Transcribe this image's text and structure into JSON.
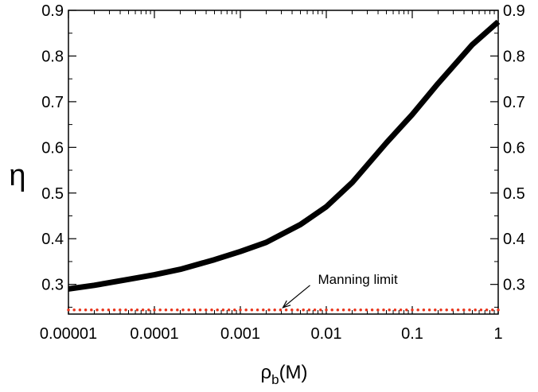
{
  "chart_data": {
    "type": "line",
    "title": "",
    "xlabel": {
      "base": "ρ",
      "sub": "b",
      "rest": "(M)"
    },
    "ylabel": "η",
    "x_scale": "log",
    "xlim": [
      1e-05,
      1
    ],
    "ylim": [
      0.235,
      0.9
    ],
    "x_ticks": [
      "0.00001",
      "0.0001",
      "0.001",
      "0.01",
      "0.1",
      "1"
    ],
    "x_tick_values": [
      1e-05,
      0.0001,
      0.001,
      0.01,
      0.1,
      1
    ],
    "y_ticks": [
      "0.3",
      "0.4",
      "0.5",
      "0.6",
      "0.7",
      "0.8",
      "0.9"
    ],
    "y_tick_values": [
      0.3,
      0.4,
      0.5,
      0.6,
      0.7,
      0.8,
      0.9
    ],
    "grid": false,
    "series": [
      {
        "color": "#000000",
        "style": "solid",
        "x": [
          1e-05,
          2e-05,
          5e-05,
          0.0001,
          0.0002,
          0.0005,
          0.001,
          0.002,
          0.005,
          0.01,
          0.02,
          0.05,
          0.1,
          0.2,
          0.5,
          1
        ],
        "y": [
          0.29,
          0.298,
          0.311,
          0.321,
          0.333,
          0.354,
          0.372,
          0.392,
          0.431,
          0.47,
          0.523,
          0.61,
          0.672,
          0.74,
          0.825,
          0.875
        ]
      },
      {
        "color": "#e8361e",
        "style": "dotted",
        "x": [
          1e-05,
          1
        ],
        "y": [
          0.244,
          0.244
        ]
      }
    ],
    "annotation": {
      "text": "Manning limit",
      "target_x": 0.003,
      "target_y": 0.244
    }
  }
}
